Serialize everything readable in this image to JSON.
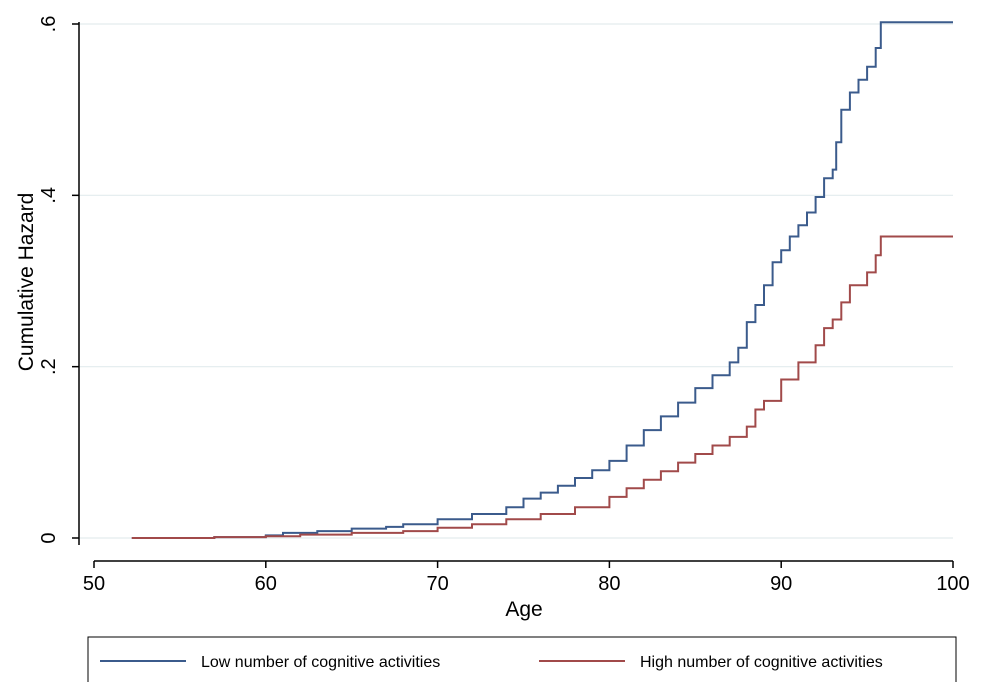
{
  "chart_data": {
    "type": "line",
    "title": "",
    "xlabel": "Age",
    "ylabel": "Cumulative Hazard",
    "xlim": [
      50,
      100
    ],
    "ylim": [
      0,
      0.6
    ],
    "x_ticks": [
      {
        "value": 50,
        "label": "50"
      },
      {
        "value": 60,
        "label": "60"
      },
      {
        "value": 70,
        "label": "70"
      },
      {
        "value": 80,
        "label": "80"
      },
      {
        "value": 90,
        "label": "90"
      },
      {
        "value": 100,
        "label": "100"
      }
    ],
    "y_ticks": [
      {
        "value": 0,
        "label": "0"
      },
      {
        "value": 0.2,
        "label": ".2"
      },
      {
        "value": 0.4,
        "label": ".4"
      },
      {
        "value": 0.6,
        "label": ".6"
      }
    ],
    "grid": true,
    "legend_position": "bottom",
    "step": true,
    "series": [
      {
        "name": "Low number of cognitive activities",
        "color": "#3b5b8c",
        "x": [
          52.2,
          57,
          60,
          61,
          63,
          65,
          67,
          68,
          70,
          72,
          74,
          75,
          76,
          77,
          78,
          79,
          80,
          81,
          82,
          83,
          84,
          85,
          86,
          87,
          87.5,
          88,
          88.5,
          89,
          89.5,
          90,
          90.5,
          91,
          91.5,
          92,
          92.5,
          93,
          93.2,
          93.5,
          94,
          94.5,
          95,
          95.5,
          95.8,
          97,
          100
        ],
        "y": [
          0,
          0.001,
          0.003,
          0.006,
          0.008,
          0.011,
          0.013,
          0.016,
          0.022,
          0.028,
          0.036,
          0.046,
          0.053,
          0.061,
          0.07,
          0.079,
          0.09,
          0.108,
          0.126,
          0.142,
          0.158,
          0.175,
          0.19,
          0.205,
          0.222,
          0.252,
          0.272,
          0.295,
          0.322,
          0.336,
          0.352,
          0.365,
          0.38,
          0.398,
          0.42,
          0.43,
          0.462,
          0.5,
          0.52,
          0.535,
          0.55,
          0.572,
          0.602,
          0.602,
          0.602
        ]
      },
      {
        "name": "High number of cognitive activities",
        "color": "#a14a4a",
        "x": [
          52.2,
          57,
          60,
          62,
          65,
          68,
          70,
          72,
          74,
          76,
          78,
          80,
          81,
          82,
          83,
          84,
          85,
          86,
          87,
          88,
          88.5,
          89,
          90,
          91,
          92,
          92.5,
          93,
          93.5,
          94,
          95,
          95.5,
          95.8,
          97,
          100
        ],
        "y": [
          0,
          0.001,
          0.002,
          0.004,
          0.006,
          0.008,
          0.012,
          0.016,
          0.022,
          0.028,
          0.036,
          0.048,
          0.058,
          0.068,
          0.078,
          0.088,
          0.098,
          0.108,
          0.118,
          0.13,
          0.15,
          0.16,
          0.185,
          0.205,
          0.225,
          0.245,
          0.255,
          0.275,
          0.295,
          0.31,
          0.33,
          0.352,
          0.352,
          0.352
        ]
      }
    ]
  }
}
